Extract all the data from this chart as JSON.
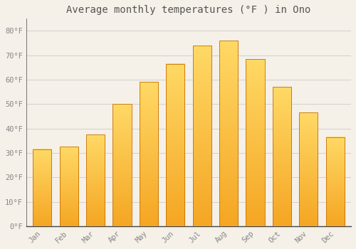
{
  "months": [
    "Jan",
    "Feb",
    "Mar",
    "Apr",
    "May",
    "Jun",
    "Jul",
    "Aug",
    "Sep",
    "Oct",
    "Nov",
    "Dec"
  ],
  "temperatures": [
    31.5,
    32.5,
    37.5,
    50.0,
    59.0,
    66.5,
    74.0,
    76.0,
    68.5,
    57.0,
    46.5,
    36.5
  ],
  "bar_color_bottom": "#F5A623",
  "bar_color_top": "#FFD966",
  "background_color": "#F5F0E8",
  "plot_bg_color": "#F5F0E8",
  "grid_color": "#CCCCCC",
  "title": "Average monthly temperatures (°F ) in Ono",
  "title_fontsize": 10,
  "tick_label_color": "#888888",
  "title_color": "#555555",
  "ylim": [
    0,
    85
  ],
  "yticks": [
    0,
    10,
    20,
    30,
    40,
    50,
    60,
    70,
    80
  ],
  "ytick_labels": [
    "0°F",
    "10°F",
    "20°F",
    "30°F",
    "40°F",
    "50°F",
    "60°F",
    "70°F",
    "80°F"
  ],
  "bar_edge_color": "#C87000",
  "bottom_spine_color": "#444444",
  "left_spine_color": "#444444"
}
